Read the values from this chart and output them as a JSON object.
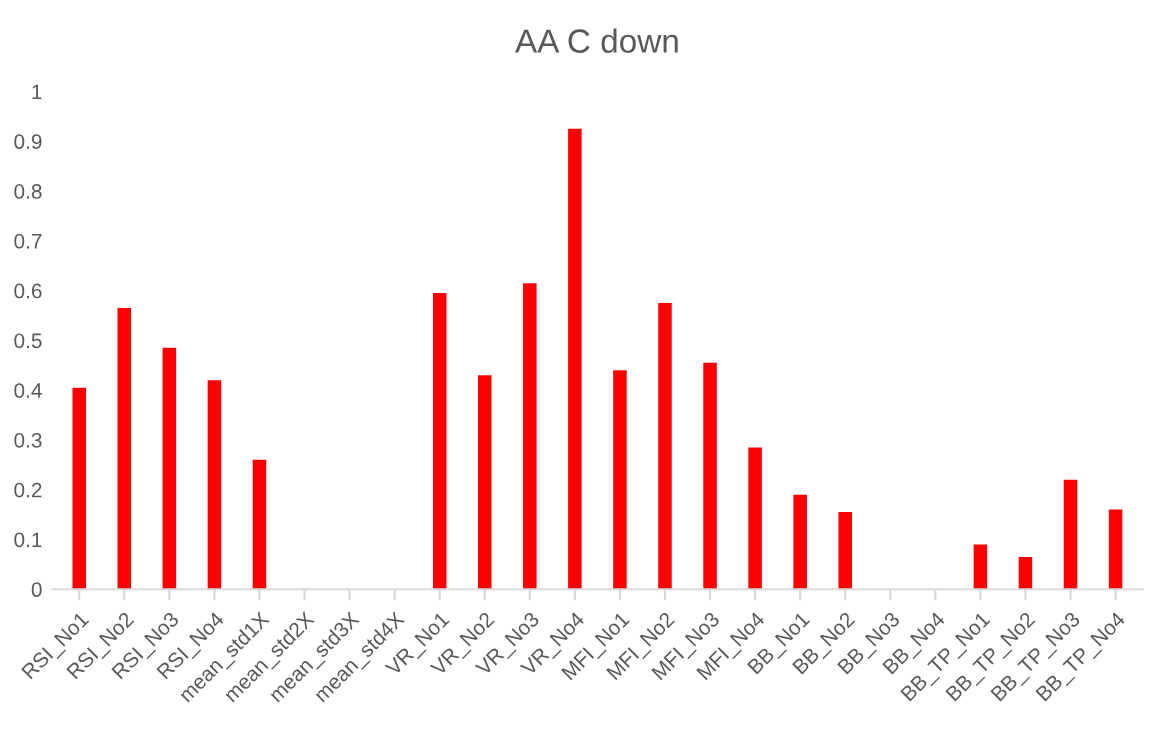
{
  "chart_data": {
    "type": "bar",
    "title": "AA C down",
    "categories": [
      "RSI_No1",
      "RSI_No2",
      "RSI_No3",
      "RSI_No4",
      "mean_std1X",
      "mean_std2X",
      "mean_std3X",
      "mean_std4X",
      "VR_No1",
      "VR_No2",
      "VR_No3",
      "VR_No4",
      "MFI_No1",
      "MFI_No2",
      "MFI_No3",
      "MFI_No4",
      "BB_No1",
      "BB_No2",
      "BB_No3",
      "BB_No4",
      "BB_TP_No1",
      "BB_TP_No2",
      "BB_TP_No3",
      "BB_TP_No4"
    ],
    "values": [
      0.405,
      0.565,
      0.485,
      0.42,
      0.26,
      0,
      0,
      0,
      0.595,
      0.43,
      0.615,
      0.925,
      0.44,
      0.575,
      0.455,
      0.285,
      0.19,
      0.155,
      0,
      0,
      0.09,
      0.065,
      0.22,
      0.16
    ],
    "color": "#ff0000",
    "ylim": [
      0,
      1
    ],
    "yticks": [
      0,
      0.1,
      0.2,
      0.3,
      0.4,
      0.5,
      0.6,
      0.7,
      0.8,
      0.9,
      1
    ],
    "grid": false
  }
}
